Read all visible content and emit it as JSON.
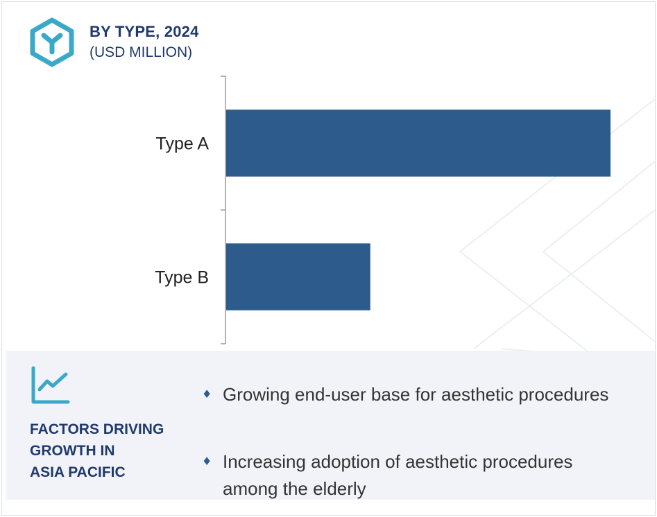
{
  "header": {
    "title": "BY TYPE, 2024",
    "subtitle": "(USD MILLION)",
    "logo_icon": "hexagon-y-icon"
  },
  "chart_data": {
    "type": "bar",
    "orientation": "horizontal",
    "title": "BY TYPE, 2024",
    "subtitle": "(USD MILLION)",
    "categories": [
      "Type A",
      "Type B"
    ],
    "values": [
      100,
      37.5
    ],
    "value_note": "relative bar lengths, no numeric axis shown",
    "xlim": [
      0,
      100
    ],
    "xlabel": "",
    "ylabel": "",
    "grid": false,
    "bar_color": "#2d5c8c"
  },
  "factors": {
    "icon": "trend-line-chart-icon",
    "heading": "FACTORS DRIVING\nGROWTH IN\nASIA PACIFIC",
    "items": [
      {
        "bullet": "♦",
        "text": "Growing end-user base for aesthetic procedures"
      },
      {
        "bullet": "♦",
        "text": "Increasing adoption of aesthetic procedures among the elderly"
      }
    ]
  },
  "colors": {
    "accent": "#3aa9c9",
    "navy": "#1f3a6b",
    "bar": "#2d5c8c",
    "panel": "#f2f3f8"
  }
}
